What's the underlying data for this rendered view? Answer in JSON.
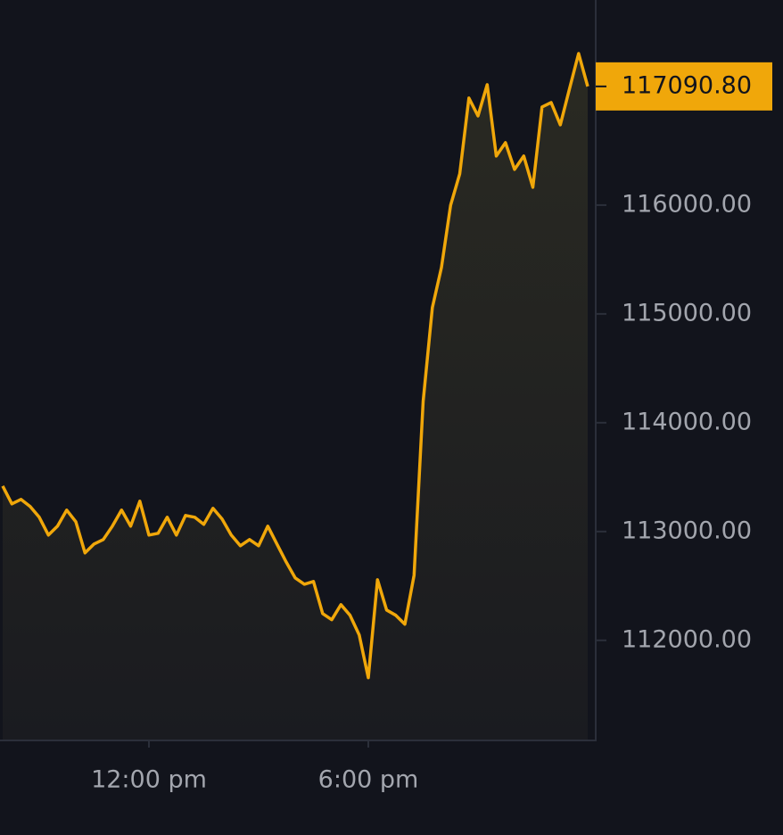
{
  "chart_data": {
    "type": "line",
    "categories": [
      null,
      null,
      null,
      null,
      null,
      null,
      null,
      null,
      null,
      null,
      null,
      null,
      null,
      null,
      null,
      null,
      "12:00 pm",
      null,
      null,
      null,
      null,
      null,
      null,
      null,
      null,
      null,
      null,
      null,
      null,
      null,
      null,
      null,
      null,
      null,
      null,
      null,
      null,
      null,
      null,
      null,
      "6:00 pm",
      null,
      null,
      null,
      null,
      null,
      null,
      null,
      null,
      null,
      null,
      null,
      null,
      null,
      null,
      null,
      null,
      null,
      null,
      null,
      null,
      null,
      null,
      null,
      null
    ],
    "values": [
      113418,
      113254,
      113295,
      113230,
      113131,
      112967,
      113049,
      113197,
      113090,
      112803,
      112885,
      112926,
      113049,
      113197,
      113049,
      113279,
      112967,
      112984,
      113131,
      112967,
      113148,
      113131,
      113066,
      113213,
      113115,
      112967,
      112869,
      112926,
      112869,
      113049,
      112885,
      112721,
      112574,
      112516,
      112541,
      112246,
      112189,
      112328,
      112230,
      112049,
      111656,
      112557,
      112279,
      112230,
      112148,
      112598,
      114197,
      115057,
      115426,
      115999,
      116287,
      116984,
      116820,
      117107,
      116451,
      116574,
      116328,
      116451,
      116164,
      116902,
      116943,
      116738,
      117066,
      117393,
      117090.8
    ],
    "color": "#f0a70a",
    "ylim": [
      111080,
      117885
    ],
    "yticks": [
      {
        "value": 112000,
        "label": "112000.00"
      },
      {
        "value": 113000,
        "label": "113000.00"
      },
      {
        "value": 114000,
        "label": "114000.00"
      },
      {
        "value": 115000,
        "label": "115000.00"
      },
      {
        "value": 116000,
        "label": "116000.00"
      }
    ],
    "last_value": {
      "value": 117090.8,
      "label": "117090.80"
    }
  }
}
